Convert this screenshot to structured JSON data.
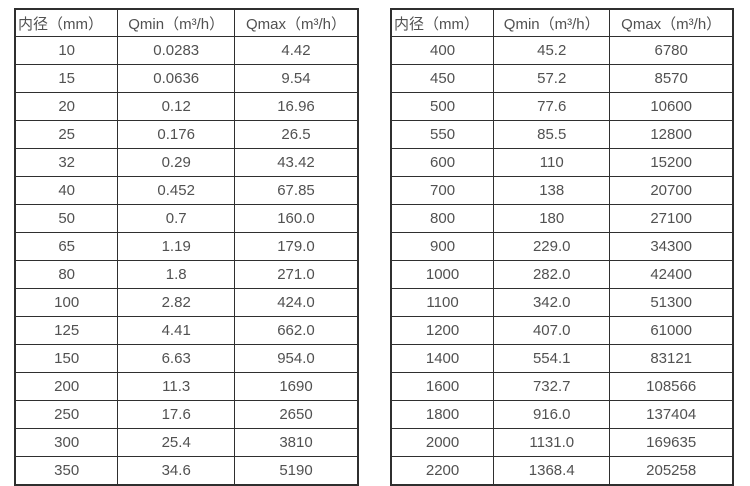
{
  "page": {
    "background_color": "#ffffff",
    "border_color": "#2f2f2f",
    "text_color": "#515151"
  },
  "tables": [
    {
      "name": "small-diameters",
      "headers": [
        "内径（mm）",
        "Qmin（m³/h）",
        "Qmax（m³/h）"
      ],
      "rows": [
        [
          "10",
          "0.0283",
          "4.42"
        ],
        [
          "15",
          "0.0636",
          "9.54"
        ],
        [
          "20",
          "0.12",
          "16.96"
        ],
        [
          "25",
          "0.176",
          "26.5"
        ],
        [
          "32",
          "0.29",
          "43.42"
        ],
        [
          "40",
          "0.452",
          "67.85"
        ],
        [
          "50",
          "0.7",
          "160.0"
        ],
        [
          "65",
          "1.19",
          "179.0"
        ],
        [
          "80",
          "1.8",
          "271.0"
        ],
        [
          "100",
          "2.82",
          "424.0"
        ],
        [
          "125",
          "4.41",
          "662.0"
        ],
        [
          "150",
          "6.63",
          "954.0"
        ],
        [
          "200",
          "11.3",
          "1690"
        ],
        [
          "250",
          "17.6",
          "2650"
        ],
        [
          "300",
          "25.4",
          "3810"
        ],
        [
          "350",
          "34.6",
          "5190"
        ]
      ]
    },
    {
      "name": "large-diameters",
      "headers": [
        "内径（mm）",
        "Qmin（m³/h）",
        "Qmax（m³/h）"
      ],
      "rows": [
        [
          "400",
          "45.2",
          "6780"
        ],
        [
          "450",
          "57.2",
          "8570"
        ],
        [
          "500",
          "77.6",
          "10600"
        ],
        [
          "550",
          "85.5",
          "12800"
        ],
        [
          "600",
          "110",
          "15200"
        ],
        [
          "700",
          "138",
          "20700"
        ],
        [
          "800",
          "180",
          "27100"
        ],
        [
          "900",
          "229.0",
          "34300"
        ],
        [
          "1000",
          "282.0",
          "42400"
        ],
        [
          "1100",
          "342.0",
          "51300"
        ],
        [
          "1200",
          "407.0",
          "61000"
        ],
        [
          "1400",
          "554.1",
          "83121"
        ],
        [
          "1600",
          "732.7",
          "108566"
        ],
        [
          "1800",
          "916.0",
          "137404"
        ],
        [
          "2000",
          "1131.0",
          "169635"
        ],
        [
          "2200",
          "1368.4",
          "205258"
        ]
      ]
    }
  ],
  "chart_data": [
    {
      "type": "table",
      "title": "",
      "columns": [
        "内径（mm）",
        "Qmin（m³/h）",
        "Qmax（m³/h）"
      ],
      "rows": [
        [
          10,
          0.0283,
          4.42
        ],
        [
          15,
          0.0636,
          9.54
        ],
        [
          20,
          0.12,
          16.96
        ],
        [
          25,
          0.176,
          26.5
        ],
        [
          32,
          0.29,
          43.42
        ],
        [
          40,
          0.452,
          67.85
        ],
        [
          50,
          0.7,
          160.0
        ],
        [
          65,
          1.19,
          179.0
        ],
        [
          80,
          1.8,
          271.0
        ],
        [
          100,
          2.82,
          424.0
        ],
        [
          125,
          4.41,
          662.0
        ],
        [
          150,
          6.63,
          954.0
        ],
        [
          200,
          11.3,
          1690
        ],
        [
          250,
          17.6,
          2650
        ],
        [
          300,
          25.4,
          3810
        ],
        [
          350,
          34.6,
          5190
        ]
      ]
    },
    {
      "type": "table",
      "title": "",
      "columns": [
        "内径（mm）",
        "Qmin（m³/h）",
        "Qmax（m³/h）"
      ],
      "rows": [
        [
          400,
          45.2,
          6780
        ],
        [
          450,
          57.2,
          8570
        ],
        [
          500,
          77.6,
          10600
        ],
        [
          550,
          85.5,
          12800
        ],
        [
          600,
          110,
          15200
        ],
        [
          700,
          138,
          20700
        ],
        [
          800,
          180,
          27100
        ],
        [
          900,
          229.0,
          34300
        ],
        [
          1000,
          282.0,
          42400
        ],
        [
          1100,
          342.0,
          51300
        ],
        [
          1200,
          407.0,
          61000
        ],
        [
          1400,
          554.1,
          83121
        ],
        [
          1600,
          732.7,
          108566
        ],
        [
          1800,
          916.0,
          137404
        ],
        [
          2000,
          1131.0,
          169635
        ],
        [
          2200,
          1368.4,
          205258
        ]
      ]
    }
  ]
}
